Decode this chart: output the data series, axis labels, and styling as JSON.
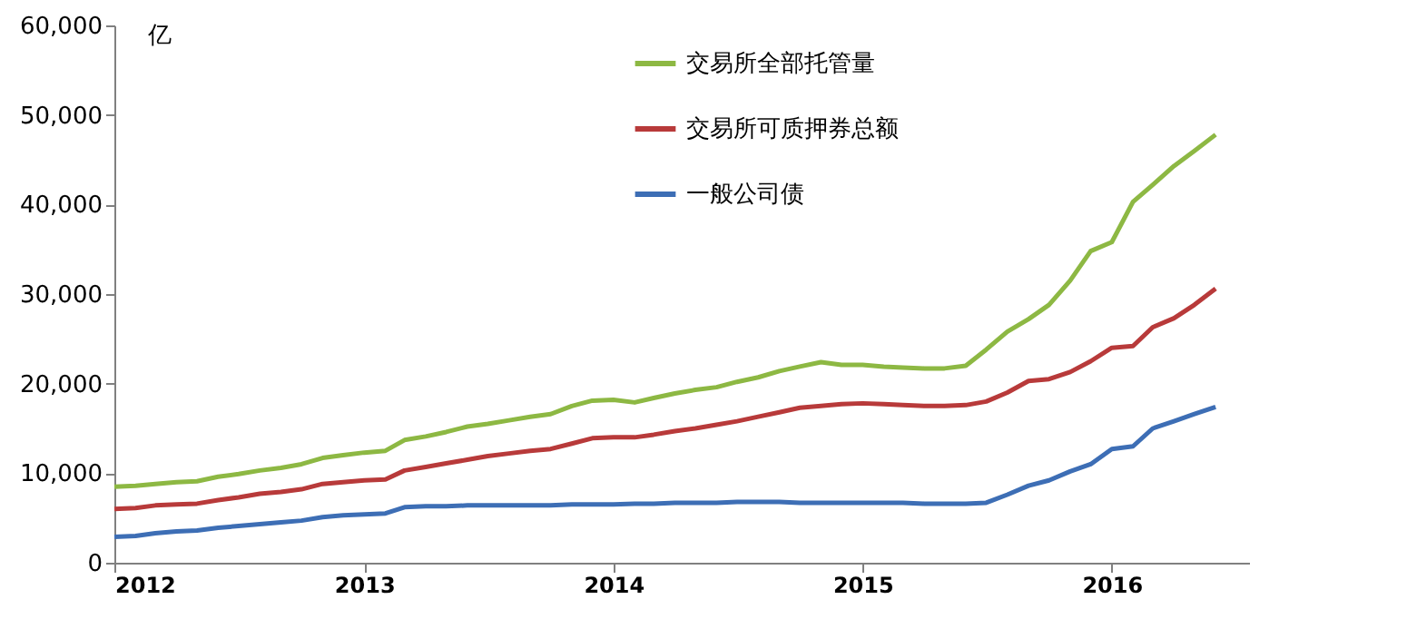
{
  "chart_data": {
    "type": "line",
    "ylabel": "亿",
    "x": [
      "2012-01",
      "2012-02",
      "2012-03",
      "2012-04",
      "2012-05",
      "2012-06",
      "2012-07",
      "2012-08",
      "2012-09",
      "2012-10",
      "2012-11",
      "2012-12",
      "2013-01",
      "2013-02",
      "2013-03",
      "2013-04",
      "2013-05",
      "2013-06",
      "2013-07",
      "2013-08",
      "2013-09",
      "2013-10",
      "2013-11",
      "2013-12",
      "2014-01",
      "2014-02",
      "2014-03",
      "2014-04",
      "2014-05",
      "2014-06",
      "2014-07",
      "2014-08",
      "2014-09",
      "2014-10",
      "2014-11",
      "2014-12",
      "2015-01",
      "2015-02",
      "2015-03",
      "2015-04",
      "2015-05",
      "2015-06",
      "2015-07",
      "2015-08",
      "2015-09",
      "2015-10",
      "2015-11",
      "2015-12",
      "2016-01",
      "2016-02",
      "2016-03",
      "2016-04",
      "2016-05",
      "2016-06"
    ],
    "series": [
      {
        "name": "交易所全部托管量",
        "color": "#8db843",
        "values": [
          8500,
          8600,
          8800,
          9000,
          9100,
          9600,
          9900,
          10300,
          10600,
          11000,
          11700,
          12000,
          12300,
          12500,
          13700,
          14100,
          14600,
          15200,
          15500,
          15900,
          16300,
          16600,
          17500,
          18100,
          18200,
          17900,
          18400,
          18900,
          19300,
          19600,
          20200,
          20700,
          21400,
          21900,
          22400,
          22100,
          22100,
          21900,
          21800,
          21700,
          21700,
          22000,
          23800,
          25800,
          27200,
          28800,
          31500,
          34800,
          35800,
          40300,
          42200,
          44300,
          46000,
          47800
        ]
      },
      {
        "name": "交易所可质押券总额",
        "color": "#b83a3a",
        "values": [
          6000,
          6100,
          6400,
          6500,
          6600,
          7000,
          7300,
          7700,
          7900,
          8200,
          8800,
          9000,
          9200,
          9300,
          10300,
          10700,
          11100,
          11500,
          11900,
          12200,
          12500,
          12700,
          13300,
          13900,
          14000,
          14000,
          14300,
          14700,
          15000,
          15400,
          15800,
          16300,
          16800,
          17300,
          17500,
          17700,
          17800,
          17700,
          17600,
          17500,
          17500,
          17600,
          18000,
          19000,
          20300,
          20500,
          21300,
          22500,
          24000,
          24200,
          26300,
          27300,
          28800,
          30600
        ]
      },
      {
        "name": "一般公司债",
        "color": "#3d6eb5",
        "values": [
          2900,
          3000,
          3300,
          3500,
          3600,
          3900,
          4100,
          4300,
          4500,
          4700,
          5100,
          5300,
          5400,
          5500,
          6200,
          6300,
          6300,
          6400,
          6400,
          6400,
          6400,
          6400,
          6500,
          6500,
          6500,
          6600,
          6600,
          6700,
          6700,
          6700,
          6800,
          6800,
          6800,
          6700,
          6700,
          6700,
          6700,
          6700,
          6700,
          6600,
          6600,
          6600,
          6700,
          7600,
          8600,
          9200,
          10200,
          11000,
          12700,
          13000,
          15000,
          15800,
          16600,
          17400
        ]
      }
    ],
    "xlim": [
      "2012-01-01",
      "2016-07-20"
    ],
    "xticks": [
      "2012",
      "2013",
      "2014",
      "2015",
      "2016"
    ],
    "ylim": [
      0,
      60000
    ],
    "yticks": [
      0,
      {
        "value": 10000,
        "label": "10,000"
      },
      {
        "value": 20000,
        "label": "20,000"
      },
      {
        "value": 30000,
        "label": "30,000"
      },
      {
        "value": 40000,
        "label": "40,000"
      },
      {
        "value": 50000,
        "label": "50,000"
      },
      {
        "value": 60000,
        "label": "60,000"
      }
    ],
    "grid": false,
    "legend": "top right",
    "marker": "none",
    "line_style": "solid"
  }
}
